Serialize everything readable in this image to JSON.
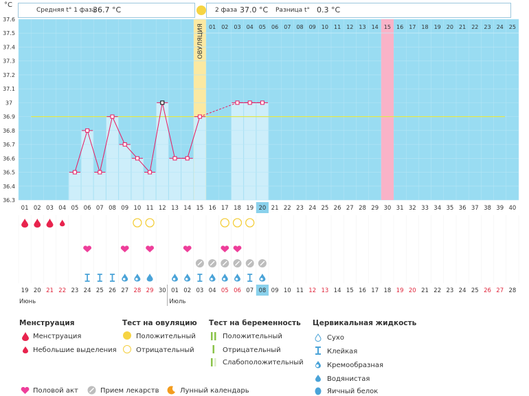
{
  "header": {
    "phase1_label": "Средняя t° 1 фаза",
    "phase1_value": "36.7 °C",
    "phase2_label": "2 фаза",
    "phase2_value": "37.0 °C",
    "diff_label": "Разница t°",
    "diff_value": "0.3 °C",
    "unit": "°C"
  },
  "chart_data": {
    "type": "line",
    "title": "",
    "ylabel": "°C",
    "ylim": [
      36.3,
      37.6
    ],
    "yticks": [
      "37.6",
      "37.5",
      "37.4",
      "37.3",
      "37.2",
      "37.1",
      "37",
      "36.9",
      "36.8",
      "36.7",
      "36.6",
      "36.5",
      "36.4",
      "36.3"
    ],
    "cycle_days": [
      "01",
      "02",
      "03",
      "04",
      "05",
      "06",
      "07",
      "08",
      "09",
      "10",
      "11",
      "12",
      "13",
      "14",
      "15",
      "16",
      "17",
      "18",
      "19",
      "20",
      "21",
      "22",
      "23",
      "24",
      "25",
      "26",
      "27",
      "28",
      "29",
      "30",
      "31",
      "32",
      "33",
      "34",
      "35",
      "36",
      "37",
      "38",
      "39",
      "40"
    ],
    "temperature_series": {
      "name": "Базальная температура",
      "values": [
        null,
        null,
        null,
        null,
        36.5,
        36.8,
        36.5,
        36.9,
        36.7,
        36.6,
        36.5,
        37.0,
        36.6,
        36.6,
        36.9,
        null,
        null,
        37.0,
        37.0,
        37.0,
        null,
        null,
        null,
        null,
        null,
        null,
        null,
        null,
        null,
        null,
        null,
        null,
        null,
        null,
        null,
        null,
        null,
        null,
        null,
        null
      ]
    },
    "coverline": 36.9,
    "ovulation_day": 15,
    "ovulation_label": "ОВУЛЯЦИЯ",
    "expected_period_day": 30,
    "today_day": 20,
    "post_ovulation_days": [
      "01",
      "02",
      "03",
      "04",
      "05",
      "06",
      "07",
      "08",
      "09",
      "10",
      "11",
      "12",
      "13",
      "14",
      "15",
      "16",
      "17",
      "18",
      "19",
      "20",
      "21",
      "22",
      "23",
      "24",
      "25"
    ],
    "post_ovulation_highlight": "15",
    "calendar_dates": [
      "19",
      "20",
      "21",
      "22",
      "23",
      "24",
      "25",
      "26",
      "27",
      "28",
      "29",
      "30",
      "01",
      "02",
      "03",
      "04",
      "05",
      "06",
      "07",
      "08",
      "09",
      "10",
      "11",
      "12",
      "13",
      "14",
      "15",
      "16",
      "17",
      "18",
      "19",
      "20",
      "21",
      "22",
      "23",
      "24",
      "25",
      "26",
      "27",
      "28"
    ],
    "weekend_dates_idx": [
      2,
      3,
      9,
      10,
      16,
      17,
      23,
      24,
      30,
      31,
      37,
      38
    ],
    "calendar_today_idx": 19,
    "month_labels": [
      {
        "text": "Июнь",
        "at": 0
      },
      {
        "text": "Июль",
        "at": 12
      }
    ],
    "rows": {
      "menstruation": [
        {
          "day": 1,
          "kind": "full"
        },
        {
          "day": 2,
          "kind": "full"
        },
        {
          "day": 3,
          "kind": "full"
        },
        {
          "day": 4,
          "kind": "light"
        }
      ],
      "ovulation_test": [
        {
          "day": 10,
          "kind": "negative"
        },
        {
          "day": 11,
          "kind": "negative"
        },
        {
          "day": 17,
          "kind": "negative"
        },
        {
          "day": 18,
          "kind": "negative"
        },
        {
          "day": 19,
          "kind": "negative"
        }
      ],
      "intercourse": [
        6,
        9,
        11,
        14,
        17,
        18
      ],
      "medication": [
        15,
        16,
        17,
        18,
        19,
        20
      ],
      "cervical_fluid": [
        {
          "day": 6,
          "kind": "sticky"
        },
        {
          "day": 7,
          "kind": "sticky"
        },
        {
          "day": 8,
          "kind": "sticky"
        },
        {
          "day": 9,
          "kind": "creamy"
        },
        {
          "day": 10,
          "kind": "creamy"
        },
        {
          "day": 11,
          "kind": "watery"
        },
        {
          "day": 13,
          "kind": "creamy"
        },
        {
          "day": 14,
          "kind": "creamy"
        },
        {
          "day": 15,
          "kind": "sticky"
        },
        {
          "day": 16,
          "kind": "creamy"
        },
        {
          "day": 17,
          "kind": "creamy"
        },
        {
          "day": 18,
          "kind": "creamy"
        },
        {
          "day": 19,
          "kind": "sticky"
        },
        {
          "day": 20,
          "kind": "creamy"
        }
      ]
    }
  },
  "colors": {
    "plot_bg": "#99dcf2",
    "bar": "#cdeefa",
    "line": "#e8185f",
    "ovulation": "#fbe9a2",
    "period": "#f9b3c8",
    "coverline": "#e6e84a",
    "today": "#8ad1ec",
    "weekend": "#e0263c"
  },
  "legend": {
    "menstruation": {
      "title": "Менструация",
      "items": [
        "Менструация",
        "Небольшие выделения"
      ]
    },
    "ovulation_test": {
      "title": "Тест на овуляцию",
      "items": [
        "Положительный",
        "Отрицательный"
      ]
    },
    "pregnancy_test": {
      "title": "Тест на беременность",
      "items": [
        "Положительный",
        "Отрицательный",
        "Слабоположительный"
      ]
    },
    "cervical": {
      "title": "Цервикальная жидкость",
      "items": [
        "Сухо",
        "Клейкая",
        "Кремообразная",
        "Водянистая",
        "Яичный белок"
      ]
    },
    "bottom": [
      "Половой акт",
      "Прием лекарств",
      "Лунный календарь"
    ]
  }
}
